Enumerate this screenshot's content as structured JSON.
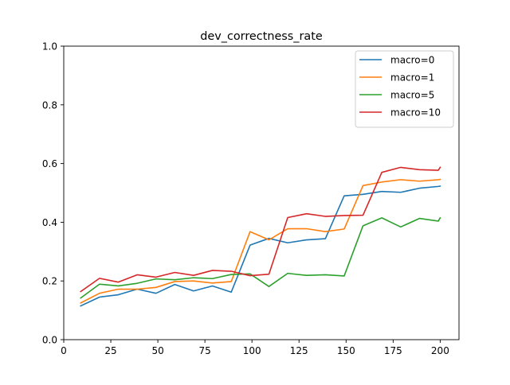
{
  "chart_data": {
    "type": "line",
    "title": "dev_correctness_rate",
    "xlabel": "",
    "ylabel": "",
    "xlim": [
      0,
      210
    ],
    "ylim": [
      0.0,
      1.0
    ],
    "xticks": [
      0,
      25,
      50,
      75,
      100,
      125,
      150,
      175,
      200
    ],
    "xtick_labels": [
      "0",
      "25",
      "50",
      "75",
      "100",
      "125",
      "150",
      "175",
      "200"
    ],
    "yticks": [
      0.0,
      0.2,
      0.4,
      0.6,
      0.8,
      1.0
    ],
    "ytick_labels": [
      "0.0",
      "0.2",
      "0.4",
      "0.6",
      "0.8",
      "1.0"
    ],
    "grid": false,
    "legend_position": "top-right",
    "x": [
      9,
      19,
      29,
      39,
      49,
      59,
      69,
      79,
      89,
      99,
      109,
      119,
      129,
      139,
      149,
      159,
      169,
      179,
      189,
      199,
      200
    ],
    "series": [
      {
        "name": "macro=0",
        "color": "#1f77b4",
        "values": [
          0.115,
          0.145,
          0.153,
          0.172,
          0.158,
          0.188,
          0.166,
          0.183,
          0.162,
          0.322,
          0.345,
          0.33,
          0.34,
          0.344,
          0.49,
          0.495,
          0.505,
          0.502,
          0.516,
          0.522,
          0.523
        ]
      },
      {
        "name": "macro=1",
        "color": "#ff7f0e",
        "values": [
          0.125,
          0.158,
          0.172,
          0.172,
          0.178,
          0.198,
          0.2,
          0.193,
          0.198,
          0.368,
          0.34,
          0.378,
          0.378,
          0.368,
          0.377,
          0.525,
          0.537,
          0.545,
          0.54,
          0.545,
          0.546
        ]
      },
      {
        "name": "macro=5",
        "color": "#2ca02c",
        "values": [
          0.142,
          0.189,
          0.183,
          0.192,
          0.207,
          0.204,
          0.211,
          0.208,
          0.222,
          0.224,
          0.181,
          0.226,
          0.219,
          0.221,
          0.217,
          0.388,
          0.415,
          0.384,
          0.413,
          0.404,
          0.415
        ]
      },
      {
        "name": "macro=10",
        "color": "#d62728",
        "values": [
          0.164,
          0.209,
          0.196,
          0.221,
          0.213,
          0.229,
          0.219,
          0.236,
          0.233,
          0.218,
          0.223,
          0.416,
          0.429,
          0.42,
          0.423,
          0.424,
          0.57,
          0.587,
          0.579,
          0.577,
          0.587
        ]
      }
    ]
  }
}
